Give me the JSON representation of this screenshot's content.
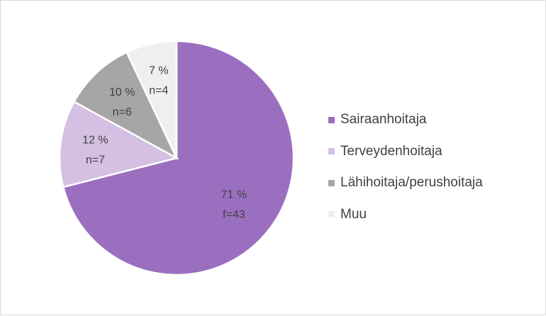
{
  "chart_data": {
    "type": "pie",
    "title": "",
    "categories": [
      "Sairaanhoitaja",
      "Terveydenhoitaja",
      "Lähihoitaja/perushoitaja",
      "Muu"
    ],
    "values": [
      71,
      12,
      10,
      7
    ],
    "counts": [
      43,
      7,
      6,
      4
    ],
    "value_labels": [
      "71 %",
      "12 %",
      "10 %",
      "7 %"
    ],
    "count_labels": [
      "f=43",
      "n=7",
      "n=6",
      "n=4"
    ],
    "colors": [
      "#9b6fbf",
      "#d5bfe3",
      "#a6a6a6",
      "#efefef"
    ],
    "legend": "right"
  }
}
